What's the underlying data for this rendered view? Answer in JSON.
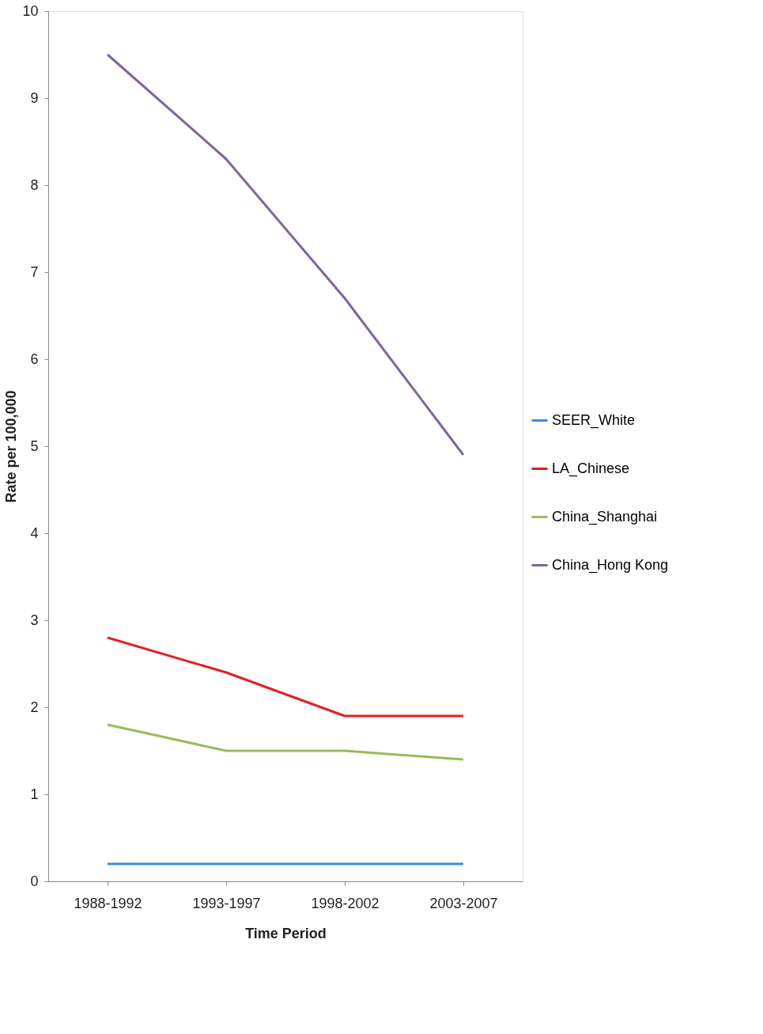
{
  "chart_data": {
    "type": "line",
    "xlabel": "Time Period",
    "ylabel": "Rate per 100,000",
    "categories": [
      "1988-1992",
      "1993-1997",
      "1998-2002",
      "2003-2007"
    ],
    "series": [
      {
        "name": "SEER_White",
        "color": "#3a8dd8",
        "values": [
          0.2,
          0.2,
          0.2,
          0.2
        ]
      },
      {
        "name": "LA_Chinese",
        "color": "#e3201e",
        "values": [
          2.8,
          2.4,
          1.9,
          1.9
        ]
      },
      {
        "name": "China_Shanghai",
        "color": "#9bbb59",
        "values": [
          1.8,
          1.5,
          1.5,
          1.4
        ]
      },
      {
        "name": "China_Hong Kong",
        "color": "#8064a2",
        "values": [
          9.5,
          8.3,
          6.7,
          4.9
        ]
      }
    ],
    "ylim": [
      0,
      10
    ],
    "yticks": [
      0,
      1,
      2,
      3,
      4,
      5,
      6,
      7,
      8,
      9,
      10
    ],
    "grid": false,
    "legend": "right",
    "marker": "none",
    "line_style": "solid"
  }
}
